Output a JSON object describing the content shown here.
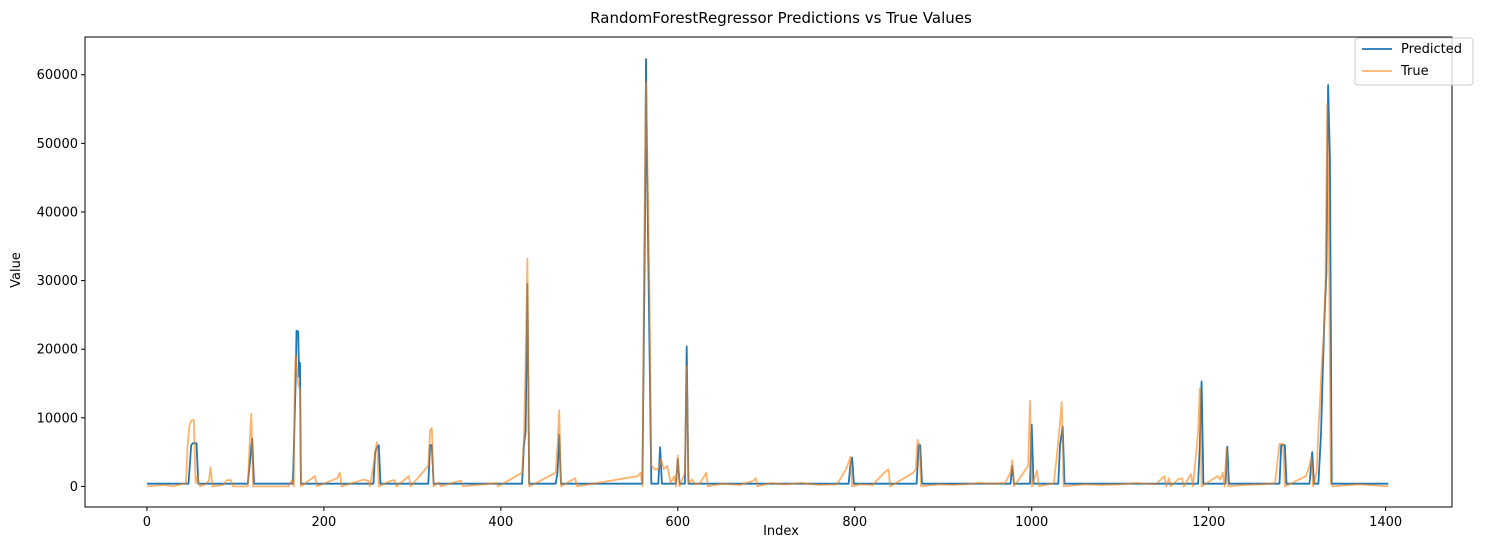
{
  "chart_data": {
    "type": "line",
    "title": "RandomForestRegressor Predictions vs True Values",
    "xlabel": "Index",
    "ylabel": "Value",
    "xlim": [
      -70,
      1475
    ],
    "ylim": [
      -3000,
      65500
    ],
    "xticks": [
      0,
      200,
      400,
      600,
      800,
      1000,
      1200,
      1400
    ],
    "yticks": [
      0,
      10000,
      20000,
      30000,
      40000,
      50000,
      60000
    ],
    "legend_position": "top-right",
    "series": [
      {
        "name": "Predicted",
        "color": "#1f77b4",
        "opacity": 1,
        "points": [
          [
            0,
            400
          ],
          [
            47,
            400
          ],
          [
            50,
            6000
          ],
          [
            52,
            6300
          ],
          [
            56,
            6300
          ],
          [
            58,
            400
          ],
          [
            114,
            400
          ],
          [
            117,
            4500
          ],
          [
            119,
            7000
          ],
          [
            121,
            400
          ],
          [
            165,
            400
          ],
          [
            168,
            15000
          ],
          [
            169,
            22700
          ],
          [
            171,
            22600
          ],
          [
            172,
            16000
          ],
          [
            173,
            18000
          ],
          [
            174,
            400
          ],
          [
            256,
            400
          ],
          [
            258,
            5000
          ],
          [
            260,
            5700
          ],
          [
            262,
            6000
          ],
          [
            264,
            400
          ],
          [
            318,
            400
          ],
          [
            320,
            6000
          ],
          [
            322,
            6000
          ],
          [
            324,
            400
          ],
          [
            424,
            400
          ],
          [
            426,
            6000
          ],
          [
            428,
            8000
          ],
          [
            430,
            29500
          ],
          [
            432,
            400
          ],
          [
            462,
            400
          ],
          [
            464,
            2000
          ],
          [
            466,
            7500
          ],
          [
            468,
            400
          ],
          [
            560,
            400
          ],
          [
            563,
            40000
          ],
          [
            564,
            62300
          ],
          [
            565,
            50000
          ],
          [
            567,
            30000
          ],
          [
            570,
            400
          ],
          [
            578,
            400
          ],
          [
            580,
            5700
          ],
          [
            582,
            400
          ],
          [
            598,
            400
          ],
          [
            600,
            4000
          ],
          [
            602,
            400
          ],
          [
            608,
            400
          ],
          [
            610,
            20400
          ],
          [
            612,
            400
          ],
          [
            793,
            400
          ],
          [
            795,
            3000
          ],
          [
            797,
            4200
          ],
          [
            799,
            400
          ],
          [
            870,
            400
          ],
          [
            872,
            6000
          ],
          [
            874,
            6000
          ],
          [
            876,
            400
          ],
          [
            976,
            400
          ],
          [
            978,
            3000
          ],
          [
            980,
            400
          ],
          [
            998,
            400
          ],
          [
            1000,
            9000
          ],
          [
            1002,
            400
          ],
          [
            1030,
            400
          ],
          [
            1032,
            6000
          ],
          [
            1035,
            8700
          ],
          [
            1037,
            400
          ],
          [
            1188,
            400
          ],
          [
            1190,
            6000
          ],
          [
            1192,
            15300
          ],
          [
            1194,
            400
          ],
          [
            1219,
            400
          ],
          [
            1221,
            5800
          ],
          [
            1223,
            400
          ],
          [
            1280,
            400
          ],
          [
            1282,
            6000
          ],
          [
            1286,
            6000
          ],
          [
            1288,
            400
          ],
          [
            1314,
            400
          ],
          [
            1317,
            5000
          ],
          [
            1319,
            400
          ],
          [
            1324,
            400
          ],
          [
            1327,
            8000
          ],
          [
            1329,
            17000
          ],
          [
            1331,
            25000
          ],
          [
            1333,
            31000
          ],
          [
            1335,
            58500
          ],
          [
            1337,
            48000
          ],
          [
            1339,
            400
          ],
          [
            1403,
            400
          ]
        ]
      },
      {
        "name": "True",
        "color": "#ff7f0e",
        "opacity": 0.6,
        "points": [
          [
            0,
            0
          ],
          [
            20,
            200
          ],
          [
            30,
            0
          ],
          [
            44,
            500
          ],
          [
            46,
            6000
          ],
          [
            48,
            8800
          ],
          [
            50,
            9600
          ],
          [
            53,
            9700
          ],
          [
            55,
            500
          ],
          [
            57,
            1500
          ],
          [
            60,
            0
          ],
          [
            66,
            300
          ],
          [
            70,
            800
          ],
          [
            72,
            2800
          ],
          [
            74,
            0
          ],
          [
            86,
            200
          ],
          [
            90,
            900
          ],
          [
            95,
            900
          ],
          [
            97,
            0
          ],
          [
            114,
            0
          ],
          [
            116,
            6000
          ],
          [
            118,
            10600
          ],
          [
            120,
            0
          ],
          [
            160,
            0
          ],
          [
            164,
            1000
          ],
          [
            166,
            0
          ],
          [
            167,
            15000
          ],
          [
            168,
            19200
          ],
          [
            170,
            16500
          ],
          [
            171,
            15000
          ],
          [
            173,
            14000
          ],
          [
            174,
            0
          ],
          [
            190,
            1500
          ],
          [
            192,
            0
          ],
          [
            215,
            1200
          ],
          [
            218,
            2000
          ],
          [
            220,
            0
          ],
          [
            245,
            1000
          ],
          [
            250,
            800
          ],
          [
            252,
            0
          ],
          [
            256,
            3000
          ],
          [
            258,
            5000
          ],
          [
            260,
            6400
          ],
          [
            262,
            0
          ],
          [
            275,
            800
          ],
          [
            280,
            900
          ],
          [
            282,
            0
          ],
          [
            296,
            1500
          ],
          [
            298,
            0
          ],
          [
            318,
            3000
          ],
          [
            320,
            8200
          ],
          [
            322,
            8500
          ],
          [
            324,
            0
          ],
          [
            330,
            600
          ],
          [
            332,
            0
          ],
          [
            350,
            700
          ],
          [
            355,
            800
          ],
          [
            357,
            0
          ],
          [
            395,
            500
          ],
          [
            397,
            0
          ],
          [
            424,
            2000
          ],
          [
            426,
            7000
          ],
          [
            428,
            18000
          ],
          [
            430,
            33200
          ],
          [
            432,
            0
          ],
          [
            462,
            2000
          ],
          [
            464,
            6000
          ],
          [
            466,
            11100
          ],
          [
            468,
            0
          ],
          [
            484,
            1200
          ],
          [
            486,
            0
          ],
          [
            555,
            1500
          ],
          [
            558,
            2000
          ],
          [
            560,
            0
          ],
          [
            562,
            35000
          ],
          [
            564,
            59000
          ],
          [
            566,
            45000
          ],
          [
            568,
            28000
          ],
          [
            570,
            3000
          ],
          [
            574,
            2500
          ],
          [
            578,
            2500
          ],
          [
            581,
            4000
          ],
          [
            584,
            2500
          ],
          [
            588,
            3000
          ],
          [
            592,
            500
          ],
          [
            596,
            1500
          ],
          [
            598,
            0
          ],
          [
            600,
            4500
          ],
          [
            602,
            0
          ],
          [
            608,
            2000
          ],
          [
            610,
            17500
          ],
          [
            612,
            500
          ],
          [
            616,
            1000
          ],
          [
            620,
            300
          ],
          [
            625,
            500
          ],
          [
            630,
            1500
          ],
          [
            632,
            2000
          ],
          [
            634,
            0
          ],
          [
            650,
            400
          ],
          [
            670,
            200
          ],
          [
            685,
            800
          ],
          [
            688,
            1200
          ],
          [
            690,
            0
          ],
          [
            705,
            500
          ],
          [
            720,
            300
          ],
          [
            740,
            500
          ],
          [
            760,
            200
          ],
          [
            780,
            300
          ],
          [
            790,
            2500
          ],
          [
            793,
            3500
          ],
          [
            795,
            4300
          ],
          [
            797,
            0
          ],
          [
            805,
            300
          ],
          [
            820,
            200
          ],
          [
            835,
            2200
          ],
          [
            838,
            2500
          ],
          [
            840,
            0
          ],
          [
            866,
            2000
          ],
          [
            869,
            2500
          ],
          [
            871,
            6800
          ],
          [
            873,
            6000
          ],
          [
            875,
            0
          ],
          [
            895,
            300
          ],
          [
            910,
            200
          ],
          [
            925,
            300
          ],
          [
            940,
            500
          ],
          [
            955,
            400
          ],
          [
            970,
            500
          ],
          [
            976,
            2000
          ],
          [
            978,
            3800
          ],
          [
            980,
            0
          ],
          [
            996,
            3000
          ],
          [
            998,
            12500
          ],
          [
            1000,
            0
          ],
          [
            1004,
            1500
          ],
          [
            1006,
            2300
          ],
          [
            1008,
            0
          ],
          [
            1025,
            500
          ],
          [
            1028,
            4000
          ],
          [
            1031,
            8000
          ],
          [
            1034,
            12300
          ],
          [
            1036,
            0
          ],
          [
            1060,
            300
          ],
          [
            1080,
            200
          ],
          [
            1100,
            300
          ],
          [
            1120,
            500
          ],
          [
            1140,
            300
          ],
          [
            1150,
            1500
          ],
          [
            1152,
            0
          ],
          [
            1155,
            1200
          ],
          [
            1157,
            0
          ],
          [
            1165,
            1000
          ],
          [
            1170,
            1200
          ],
          [
            1172,
            0
          ],
          [
            1180,
            1800
          ],
          [
            1182,
            0
          ],
          [
            1186,
            5000
          ],
          [
            1188,
            8000
          ],
          [
            1190,
            14300
          ],
          [
            1192,
            0
          ],
          [
            1210,
            1500
          ],
          [
            1213,
            1000
          ],
          [
            1216,
            2000
          ],
          [
            1218,
            0
          ],
          [
            1220,
            5500
          ],
          [
            1222,
            0
          ],
          [
            1240,
            200
          ],
          [
            1260,
            300
          ],
          [
            1275,
            500
          ],
          [
            1280,
            6200
          ],
          [
            1284,
            6200
          ],
          [
            1286,
            0
          ],
          [
            1310,
            1500
          ],
          [
            1314,
            3000
          ],
          [
            1316,
            4200
          ],
          [
            1318,
            0
          ],
          [
            1322,
            2000
          ],
          [
            1324,
            8000
          ],
          [
            1326,
            13000
          ],
          [
            1328,
            18000
          ],
          [
            1330,
            22000
          ],
          [
            1332,
            30000
          ],
          [
            1334,
            55800
          ],
          [
            1336,
            35000
          ],
          [
            1338,
            500
          ],
          [
            1340,
            0
          ],
          [
            1370,
            300
          ],
          [
            1403,
            0
          ]
        ]
      }
    ]
  }
}
